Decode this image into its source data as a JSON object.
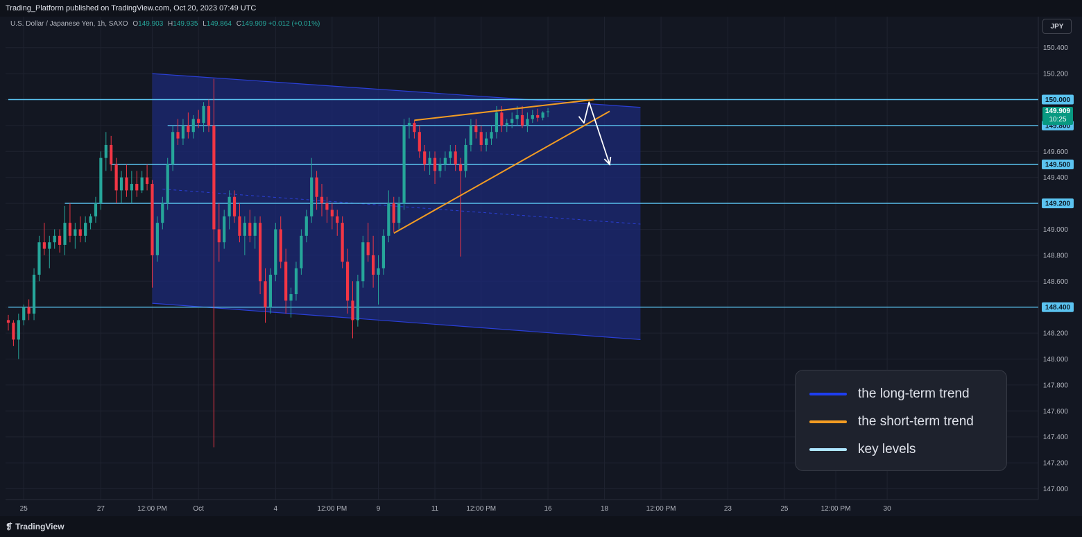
{
  "header": {
    "publisher_text": "Trading_Platform published on TradingView.com, Oct 20, 2023 07:49 UTC"
  },
  "legend": {
    "instrument": "U.S. Dollar / Japanese Yen, 1h, SAXO",
    "open_label": "O",
    "open": "149.903",
    "high_label": "H",
    "high": "149.935",
    "low_label": "L",
    "low": "149.864",
    "close_label": "C",
    "close": "149.909",
    "change": "+0.012 (+0.01%)"
  },
  "currency_button": "JPY",
  "last_price": {
    "price": "149.909",
    "countdown": "10:25"
  },
  "footer": {
    "brand": "TradingView",
    "logo_icon": "tradingview-logo-icon"
  },
  "key": {
    "items": [
      {
        "label": "the long-term trend",
        "color": "#1e3ef0"
      },
      {
        "label": "the short-term trend",
        "color": "#f39c23"
      },
      {
        "label": "key levels",
        "color": "#aee6ff"
      }
    ]
  },
  "colors": {
    "background": "#131722",
    "up_candle": "#26a69a",
    "down_candle": "#f23645",
    "channel_fill": "#1c2a7a",
    "channel_line": "#2a3fd6",
    "key_level": "#5bc3f0",
    "badge_bg": "#5bc3f0",
    "wedge": "#f39c23",
    "projection": "#ffffff"
  },
  "chart_data": {
    "type": "candlestick",
    "title": "U.S. Dollar / Japanese Yen, 1h, SAXO",
    "y_axis": {
      "position": "right",
      "ylim": [
        146.97,
        150.53
      ],
      "ticks": [
        147.0,
        147.2,
        147.4,
        147.6,
        147.8,
        148.0,
        148.2,
        148.4,
        148.6,
        148.8,
        149.0,
        149.2,
        149.4,
        149.6,
        149.8,
        150.0,
        150.2,
        150.4
      ],
      "tick_labels": [
        "147.000",
        "147.200",
        "147.400",
        "147.600",
        "147.800",
        "148.000",
        "148.200",
        "148.400",
        "148.600",
        "148.800",
        "149.000",
        "149.200",
        "149.400",
        "149.600",
        "149.800",
        "150.000",
        "150.200",
        "150.400"
      ]
    },
    "x_axis": {
      "tick_labels": [
        "25",
        "27",
        "12:00 PM",
        "Oct",
        "4",
        "12:00 PM",
        "9",
        "11",
        "12:00 PM",
        "16",
        "18",
        "12:00 PM",
        "23",
        "25",
        "12:00 PM",
        "30"
      ],
      "tick_index": [
        3,
        18,
        28,
        37,
        52,
        63,
        72,
        83,
        92,
        105,
        116,
        127,
        140,
        151,
        161,
        171
      ]
    },
    "key_levels": [
      {
        "price": 150.0,
        "label": "150.000",
        "start_index": 0
      },
      {
        "price": 149.8,
        "label": "149.800",
        "start_index": 31
      },
      {
        "price": 149.5,
        "label": "149.500",
        "start_index": 20
      },
      {
        "price": 149.2,
        "label": "149.200",
        "start_index": 11
      },
      {
        "price": 148.4,
        "label": "148.400",
        "start_index": 0
      }
    ],
    "channel": {
      "upper": [
        {
          "index": 28,
          "price": 150.2
        },
        {
          "index": 123,
          "price": 149.94
        }
      ],
      "lower": [
        {
          "index": 28,
          "price": 148.43
        },
        {
          "index": 123,
          "price": 148.15
        }
      ],
      "mid": [
        {
          "index": 30,
          "price": 149.31
        },
        {
          "index": 123,
          "price": 149.04
        }
      ]
    },
    "wedge": {
      "upper": [
        {
          "index": 79,
          "price": 149.84
        },
        {
          "index": 114,
          "price": 150.0
        }
      ],
      "lower": [
        {
          "index": 75,
          "price": 148.97
        },
        {
          "index": 117,
          "price": 149.91
        }
      ]
    },
    "projection": [
      {
        "index": 111,
        "price": 149.87
      },
      {
        "index": 112,
        "price": 149.82
      },
      {
        "index": 113,
        "price": 149.98
      },
      {
        "index": 117,
        "price": 149.5
      }
    ],
    "candles": [
      {
        "o": 148.3,
        "h": 148.34,
        "l": 148.22,
        "c": 148.28
      },
      {
        "o": 148.28,
        "h": 148.3,
        "l": 148.1,
        "c": 148.15
      },
      {
        "o": 148.15,
        "h": 148.35,
        "l": 148.0,
        "c": 148.3
      },
      {
        "o": 148.3,
        "h": 148.42,
        "l": 148.26,
        "c": 148.4
      },
      {
        "o": 148.4,
        "h": 148.46,
        "l": 148.3,
        "c": 148.35
      },
      {
        "o": 148.35,
        "h": 148.7,
        "l": 148.3,
        "c": 148.65
      },
      {
        "o": 148.65,
        "h": 148.95,
        "l": 148.6,
        "c": 148.9
      },
      {
        "o": 148.9,
        "h": 149.05,
        "l": 148.8,
        "c": 148.85
      },
      {
        "o": 148.85,
        "h": 148.95,
        "l": 148.7,
        "c": 148.9
      },
      {
        "o": 148.9,
        "h": 149.0,
        "l": 148.85,
        "c": 148.95
      },
      {
        "o": 148.95,
        "h": 149.0,
        "l": 148.82,
        "c": 148.88
      },
      {
        "o": 148.88,
        "h": 149.18,
        "l": 148.8,
        "c": 149.05
      },
      {
        "o": 149.05,
        "h": 149.2,
        "l": 148.9,
        "c": 148.95
      },
      {
        "o": 148.95,
        "h": 149.05,
        "l": 148.85,
        "c": 149.0
      },
      {
        "o": 149.0,
        "h": 149.1,
        "l": 148.9,
        "c": 148.95
      },
      {
        "o": 148.95,
        "h": 149.1,
        "l": 148.9,
        "c": 149.05
      },
      {
        "o": 149.05,
        "h": 149.12,
        "l": 149.0,
        "c": 149.1
      },
      {
        "o": 149.1,
        "h": 149.25,
        "l": 149.05,
        "c": 149.2
      },
      {
        "o": 149.2,
        "h": 149.6,
        "l": 149.15,
        "c": 149.55
      },
      {
        "o": 149.55,
        "h": 149.75,
        "l": 149.45,
        "c": 149.65
      },
      {
        "o": 149.65,
        "h": 149.72,
        "l": 149.45,
        "c": 149.5
      },
      {
        "o": 149.5,
        "h": 149.55,
        "l": 149.2,
        "c": 149.3
      },
      {
        "o": 149.3,
        "h": 149.45,
        "l": 149.2,
        "c": 149.4
      },
      {
        "o": 149.4,
        "h": 149.5,
        "l": 149.25,
        "c": 149.3
      },
      {
        "o": 149.3,
        "h": 149.45,
        "l": 149.2,
        "c": 149.35
      },
      {
        "o": 149.35,
        "h": 149.45,
        "l": 149.25,
        "c": 149.3
      },
      {
        "o": 149.3,
        "h": 149.45,
        "l": 149.28,
        "c": 149.4
      },
      {
        "o": 149.4,
        "h": 149.5,
        "l": 149.3,
        "c": 149.35
      },
      {
        "o": 149.35,
        "h": 149.38,
        "l": 148.55,
        "c": 148.8
      },
      {
        "o": 148.8,
        "h": 149.1,
        "l": 148.75,
        "c": 149.05
      },
      {
        "o": 149.05,
        "h": 149.25,
        "l": 149.0,
        "c": 149.2
      },
      {
        "o": 149.2,
        "h": 149.55,
        "l": 149.15,
        "c": 149.5
      },
      {
        "o": 149.5,
        "h": 149.8,
        "l": 149.45,
        "c": 149.75
      },
      {
        "o": 149.75,
        "h": 149.85,
        "l": 149.65,
        "c": 149.7
      },
      {
        "o": 149.7,
        "h": 149.85,
        "l": 149.65,
        "c": 149.8
      },
      {
        "o": 149.8,
        "h": 149.9,
        "l": 149.7,
        "c": 149.75
      },
      {
        "o": 149.75,
        "h": 149.88,
        "l": 149.7,
        "c": 149.85
      },
      {
        "o": 149.85,
        "h": 149.92,
        "l": 149.78,
        "c": 149.82
      },
      {
        "o": 149.82,
        "h": 149.98,
        "l": 149.75,
        "c": 149.95
      },
      {
        "o": 149.95,
        "h": 150.0,
        "l": 149.75,
        "c": 149.8
      },
      {
        "o": 149.8,
        "h": 150.16,
        "l": 147.32,
        "c": 149.0
      },
      {
        "o": 149.0,
        "h": 149.2,
        "l": 148.75,
        "c": 148.9
      },
      {
        "o": 148.9,
        "h": 149.15,
        "l": 148.85,
        "c": 149.1
      },
      {
        "o": 149.1,
        "h": 149.3,
        "l": 149.0,
        "c": 149.25
      },
      {
        "o": 149.25,
        "h": 149.3,
        "l": 149.05,
        "c": 149.1
      },
      {
        "o": 149.1,
        "h": 149.2,
        "l": 148.9,
        "c": 148.95
      },
      {
        "o": 148.95,
        "h": 149.1,
        "l": 148.8,
        "c": 149.05
      },
      {
        "o": 149.05,
        "h": 149.15,
        "l": 148.9,
        "c": 148.95
      },
      {
        "o": 148.95,
        "h": 149.1,
        "l": 148.85,
        "c": 149.05
      },
      {
        "o": 149.05,
        "h": 149.1,
        "l": 148.5,
        "c": 148.6
      },
      {
        "o": 148.6,
        "h": 148.7,
        "l": 148.28,
        "c": 148.4
      },
      {
        "o": 148.4,
        "h": 148.7,
        "l": 148.35,
        "c": 148.65
      },
      {
        "o": 148.65,
        "h": 149.05,
        "l": 148.6,
        "c": 149.0
      },
      {
        "o": 149.0,
        "h": 149.1,
        "l": 148.7,
        "c": 148.75
      },
      {
        "o": 148.75,
        "h": 148.85,
        "l": 148.35,
        "c": 148.45
      },
      {
        "o": 148.45,
        "h": 148.55,
        "l": 148.32,
        "c": 148.5
      },
      {
        "o": 148.5,
        "h": 148.75,
        "l": 148.45,
        "c": 148.7
      },
      {
        "o": 148.7,
        "h": 149.0,
        "l": 148.65,
        "c": 148.95
      },
      {
        "o": 148.95,
        "h": 149.15,
        "l": 148.9,
        "c": 149.1
      },
      {
        "o": 149.1,
        "h": 149.55,
        "l": 149.05,
        "c": 149.4
      },
      {
        "o": 149.4,
        "h": 149.45,
        "l": 149.15,
        "c": 149.25
      },
      {
        "o": 149.25,
        "h": 149.35,
        "l": 149.1,
        "c": 149.2
      },
      {
        "o": 149.2,
        "h": 149.25,
        "l": 149.05,
        "c": 149.15
      },
      {
        "o": 149.15,
        "h": 149.2,
        "l": 149.0,
        "c": 149.1
      },
      {
        "o": 149.1,
        "h": 149.15,
        "l": 148.95,
        "c": 149.05
      },
      {
        "o": 149.05,
        "h": 149.1,
        "l": 148.7,
        "c": 148.75
      },
      {
        "o": 148.75,
        "h": 148.85,
        "l": 148.35,
        "c": 148.45
      },
      {
        "o": 148.45,
        "h": 148.6,
        "l": 148.16,
        "c": 148.3
      },
      {
        "o": 148.3,
        "h": 148.65,
        "l": 148.25,
        "c": 148.6
      },
      {
        "o": 148.6,
        "h": 148.95,
        "l": 148.55,
        "c": 148.9
      },
      {
        "o": 148.9,
        "h": 149.05,
        "l": 148.75,
        "c": 148.8
      },
      {
        "o": 148.8,
        "h": 148.95,
        "l": 148.55,
        "c": 148.65
      },
      {
        "o": 148.65,
        "h": 148.8,
        "l": 148.42,
        "c": 148.7
      },
      {
        "o": 148.7,
        "h": 149.0,
        "l": 148.65,
        "c": 148.95
      },
      {
        "o": 148.95,
        "h": 149.3,
        "l": 148.9,
        "c": 149.2
      },
      {
        "o": 149.2,
        "h": 149.25,
        "l": 148.98,
        "c": 149.05
      },
      {
        "o": 149.05,
        "h": 149.25,
        "l": 149.0,
        "c": 149.2
      },
      {
        "o": 149.2,
        "h": 149.85,
        "l": 149.15,
        "c": 149.8
      },
      {
        "o": 149.8,
        "h": 149.86,
        "l": 149.7,
        "c": 149.82
      },
      {
        "o": 149.82,
        "h": 149.84,
        "l": 149.7,
        "c": 149.75
      },
      {
        "o": 149.75,
        "h": 149.8,
        "l": 149.55,
        "c": 149.6
      },
      {
        "o": 149.6,
        "h": 149.65,
        "l": 149.45,
        "c": 149.5
      },
      {
        "o": 149.5,
        "h": 149.6,
        "l": 149.42,
        "c": 149.55
      },
      {
        "o": 149.55,
        "h": 149.6,
        "l": 149.35,
        "c": 149.45
      },
      {
        "o": 149.45,
        "h": 149.55,
        "l": 149.4,
        "c": 149.5
      },
      {
        "o": 149.5,
        "h": 149.6,
        "l": 149.45,
        "c": 149.55
      },
      {
        "o": 149.55,
        "h": 149.65,
        "l": 149.5,
        "c": 149.6
      },
      {
        "o": 149.6,
        "h": 149.65,
        "l": 149.45,
        "c": 149.5
      },
      {
        "o": 149.5,
        "h": 149.55,
        "l": 148.79,
        "c": 149.45
      },
      {
        "o": 149.45,
        "h": 149.7,
        "l": 149.4,
        "c": 149.65
      },
      {
        "o": 149.65,
        "h": 149.85,
        "l": 149.6,
        "c": 149.8
      },
      {
        "o": 149.8,
        "h": 149.85,
        "l": 149.7,
        "c": 149.75
      },
      {
        "o": 149.75,
        "h": 149.8,
        "l": 149.6,
        "c": 149.65
      },
      {
        "o": 149.65,
        "h": 149.75,
        "l": 149.6,
        "c": 149.7
      },
      {
        "o": 149.7,
        "h": 149.8,
        "l": 149.65,
        "c": 149.75
      },
      {
        "o": 149.75,
        "h": 149.95,
        "l": 149.7,
        "c": 149.9
      },
      {
        "o": 149.9,
        "h": 149.95,
        "l": 149.75,
        "c": 149.8
      },
      {
        "o": 149.8,
        "h": 149.85,
        "l": 149.75,
        "c": 149.82
      },
      {
        "o": 149.82,
        "h": 149.9,
        "l": 149.78,
        "c": 149.85
      },
      {
        "o": 149.85,
        "h": 149.95,
        "l": 149.8,
        "c": 149.88
      },
      {
        "o": 149.88,
        "h": 149.95,
        "l": 149.78,
        "c": 149.8
      },
      {
        "o": 149.8,
        "h": 149.9,
        "l": 149.75,
        "c": 149.85
      },
      {
        "o": 149.85,
        "h": 149.92,
        "l": 149.82,
        "c": 149.88
      },
      {
        "o": 149.88,
        "h": 149.93,
        "l": 149.83,
        "c": 149.86
      },
      {
        "o": 149.86,
        "h": 149.91,
        "l": 149.84,
        "c": 149.9
      },
      {
        "o": 149.903,
        "h": 149.935,
        "l": 149.864,
        "c": 149.909
      }
    ]
  }
}
